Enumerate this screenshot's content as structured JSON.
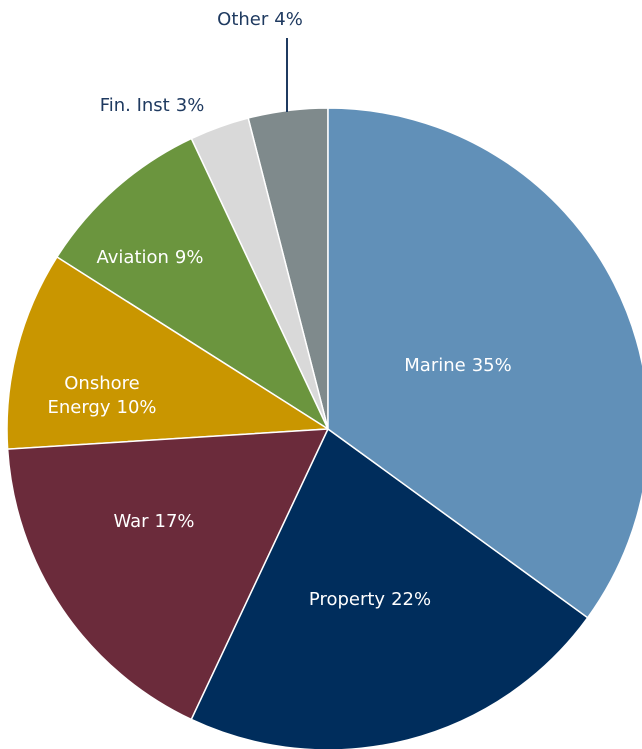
{
  "chart_data": {
    "type": "pie",
    "categories": [
      "Marine",
      "Property",
      "War",
      "Onshore Energy",
      "Aviation",
      "Fin. Inst",
      "Other"
    ],
    "values": [
      35,
      22,
      17,
      10,
      9,
      3,
      4
    ],
    "value_labels": [
      "35%",
      "22%",
      "17%",
      "10%",
      "9%",
      "3%",
      "4%"
    ],
    "colors": [
      "#6190b8",
      "#002d5c",
      "#6b2b3b",
      "#c99600",
      "#6b953e",
      "#d9d9d9",
      "#7f8a8c"
    ]
  }
}
